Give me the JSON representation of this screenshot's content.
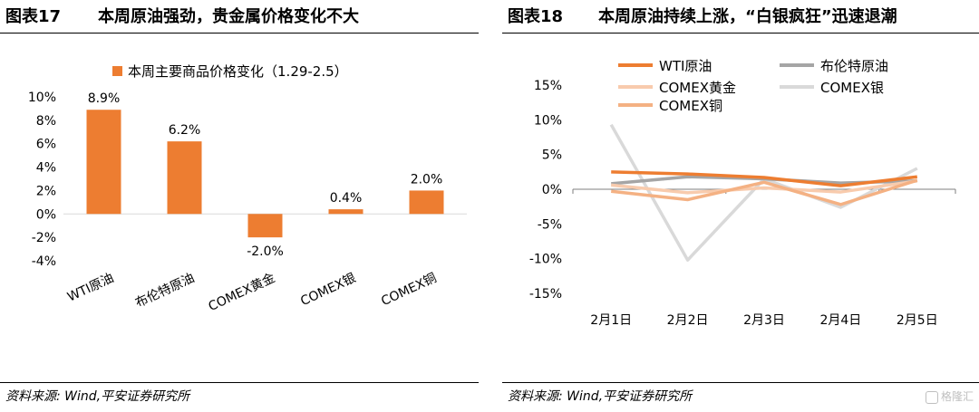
{
  "left": {
    "figure_no": "图表17",
    "title": "本周原油强劲，贵金属价格变化不大",
    "source": "资料来源: Wind,平安证券研究所"
  },
  "right": {
    "figure_no": "图表18",
    "title": "本周原油持续上涨，“白银疯狂”迅速退潮",
    "source": "资料来源: Wind,平安证券研究所"
  },
  "watermark": "格隆汇",
  "chart_data": [
    {
      "type": "bar",
      "legend": "本周主要商品价格变化（1.29-2.5）",
      "legend_position": "top",
      "categories": [
        "WTI原油",
        "布伦特原油",
        "COMEX黄金",
        "COMEX银",
        "COMEX铜"
      ],
      "values": [
        8.9,
        6.2,
        -2.0,
        0.4,
        2.0
      ],
      "data_labels": [
        "8.9%",
        "6.2%",
        "-2.0%",
        "0.4%",
        "2.0%"
      ],
      "y_ticks": [
        "10%",
        "8%",
        "6%",
        "4%",
        "2%",
        "0%",
        "-2%",
        "-4%"
      ],
      "ylim": [
        -4,
        10
      ],
      "grid": false,
      "colors": {
        "bar": "#ED7D31"
      }
    },
    {
      "type": "line",
      "legend_position": "top",
      "categories": [
        "2月1日",
        "2月2日",
        "2月3日",
        "2月4日",
        "2月5日"
      ],
      "y_ticks": [
        "15%",
        "10%",
        "5%",
        "0%",
        "-5%",
        "-10%",
        "-15%"
      ],
      "ylim": [
        -15,
        15
      ],
      "grid": false,
      "series": [
        {
          "name": "WTI原油",
          "values": [
            2.5,
            2.2,
            1.7,
            0.5,
            1.8
          ],
          "color": "#ED7D31"
        },
        {
          "name": "布伦特原油",
          "values": [
            0.8,
            1.8,
            1.5,
            0.9,
            1.2
          ],
          "color": "#A5A5A5"
        },
        {
          "name": "COMEX黄金",
          "values": [
            0.6,
            -0.5,
            0.2,
            -0.4,
            1.2
          ],
          "color": "#F8CBAD"
        },
        {
          "name": "COMEX银",
          "values": [
            9.3,
            -10.2,
            1.5,
            -2.6,
            3.0
          ],
          "color": "#D9D9D9"
        },
        {
          "name": "COMEX铜",
          "values": [
            -0.3,
            -1.5,
            1.0,
            -2.2,
            1.3
          ],
          "color": "#F4B183"
        }
      ]
    }
  ]
}
